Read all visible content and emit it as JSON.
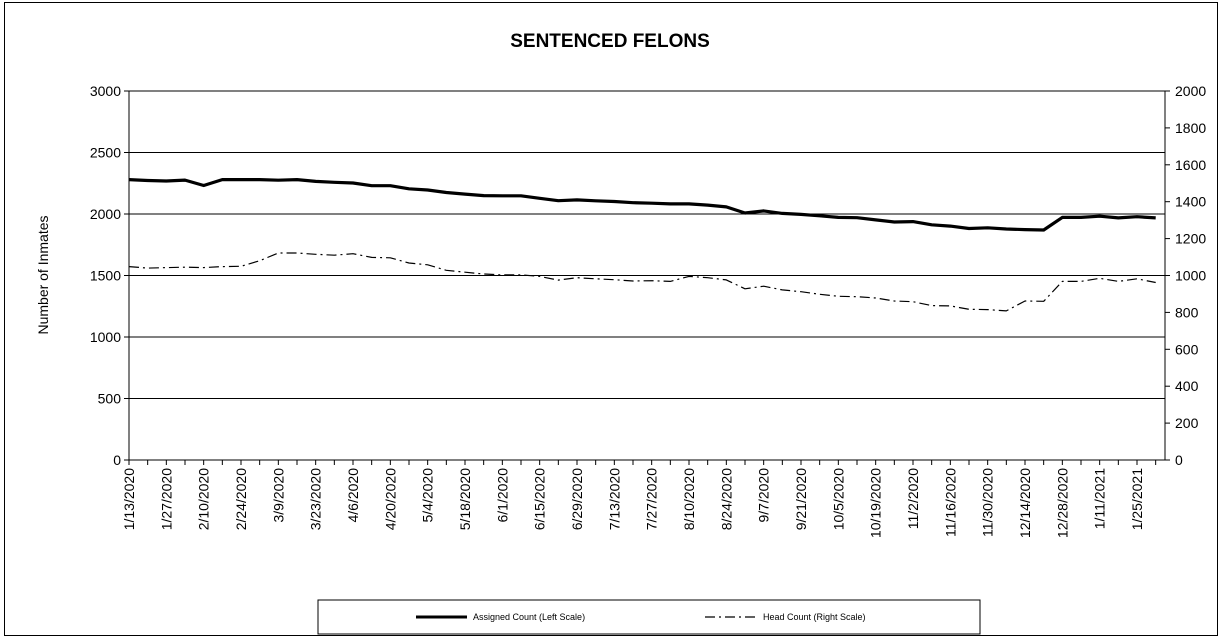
{
  "chart_data": {
    "type": "line",
    "title": "SENTENCED FELONS",
    "ylabel": "Number of Inmates",
    "ylim_left": [
      0,
      3000
    ],
    "ylim_right": [
      0,
      2000
    ],
    "yticks_left": [
      "0",
      "500",
      "1000",
      "1500",
      "2000",
      "2500",
      "3000"
    ],
    "yticks_right": [
      "0",
      "200",
      "400",
      "600",
      "800",
      "1000",
      "1200",
      "1400",
      "1600",
      "1800",
      "2000"
    ],
    "x_tick_labels": [
      "1/13/2020",
      "1/27/2020",
      "2/10/2020",
      "2/24/2020",
      "3/9/2020",
      "3/23/2020",
      "4/6/2020",
      "4/20/2020",
      "5/4/2020",
      "5/18/2020",
      "6/1/2020",
      "6/15/2020",
      "6/29/2020",
      "7/13/2020",
      "7/27/2020",
      "8/10/2020",
      "8/24/2020",
      "9/7/2020",
      "9/21/2020",
      "10/5/2020",
      "10/19/2020",
      "11/2/2020",
      "11/16/2020",
      "11/30/2020",
      "12/14/2020",
      "12/28/2020",
      "1/11/2021",
      "1/25/2021"
    ],
    "x": [
      "1/13/2020",
      "1/20/2020",
      "1/27/2020",
      "2/3/2020",
      "2/10/2020",
      "2/17/2020",
      "2/24/2020",
      "3/2/2020",
      "3/9/2020",
      "3/16/2020",
      "3/23/2020",
      "3/30/2020",
      "4/6/2020",
      "4/13/2020",
      "4/20/2020",
      "4/27/2020",
      "5/4/2020",
      "5/11/2020",
      "5/18/2020",
      "5/25/2020",
      "6/1/2020",
      "6/8/2020",
      "6/15/2020",
      "6/22/2020",
      "6/29/2020",
      "7/6/2020",
      "7/13/2020",
      "7/20/2020",
      "7/27/2020",
      "8/3/2020",
      "8/10/2020",
      "8/17/2020",
      "8/24/2020",
      "8/31/2020",
      "9/7/2020",
      "9/14/2020",
      "9/21/2020",
      "9/28/2020",
      "10/5/2020",
      "10/12/2020",
      "10/19/2020",
      "10/26/2020",
      "11/2/2020",
      "11/9/2020",
      "11/16/2020",
      "11/23/2020",
      "11/30/2020",
      "12/7/2020",
      "12/14/2020",
      "12/21/2020",
      "12/28/2020",
      "1/4/2021",
      "1/11/2021",
      "1/18/2021",
      "1/25/2021",
      "2/1/2021"
    ],
    "series": [
      {
        "name": "Assigned Count (Left Scale)",
        "axis": "left",
        "color": "#000000",
        "style": "solid-thick",
        "values": [
          2280,
          2272,
          2268,
          2276,
          2232,
          2280,
          2280,
          2280,
          2275,
          2280,
          2265,
          2258,
          2252,
          2230,
          2230,
          2205,
          2195,
          2175,
          2162,
          2150,
          2148,
          2148,
          2128,
          2108,
          2115,
          2107,
          2102,
          2092,
          2088,
          2082,
          2082,
          2072,
          2058,
          2008,
          2025,
          2005,
          1997,
          1985,
          1972,
          1970,
          1952,
          1935,
          1938,
          1912,
          1902,
          1882,
          1888,
          1878,
          1873,
          1870,
          1972,
          1972,
          1982,
          1968,
          1978,
          1968
        ]
      },
      {
        "name": "Head Count (Right Scale)",
        "axis": "right",
        "color": "#000000",
        "style": "dash-dot",
        "values": [
          1048,
          1040,
          1043,
          1045,
          1043,
          1048,
          1050,
          1080,
          1122,
          1122,
          1115,
          1110,
          1118,
          1098,
          1096,
          1068,
          1058,
          1028,
          1018,
          1008,
          1003,
          1003,
          995,
          975,
          988,
          982,
          977,
          970,
          972,
          968,
          995,
          988,
          976,
          928,
          942,
          922,
          912,
          898,
          887,
          885,
          878,
          862,
          858,
          837,
          835,
          817,
          815,
          808,
          862,
          860,
          968,
          968,
          985,
          968,
          982,
          962
        ]
      }
    ]
  }
}
